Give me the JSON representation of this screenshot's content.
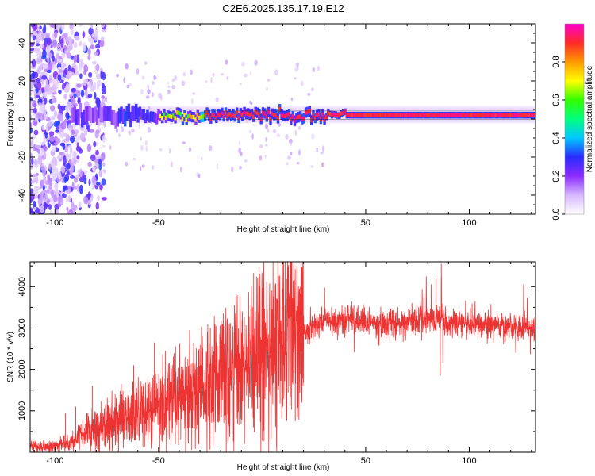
{
  "title": "C2E6.2025.135.17.19.E12",
  "colors": {
    "snr_line": "#ee3333",
    "colormap": [
      "#ffffff",
      "#d7b8ff",
      "#8b2cff",
      "#2a2bff",
      "#00c8ff",
      "#00ff80",
      "#33ff00",
      "#ffff00",
      "#ff9900",
      "#ff2a2a",
      "#ff00cc"
    ]
  },
  "chart_data": [
    {
      "type": "heatmap",
      "xlabel": "Height of straight line (km)",
      "ylabel": "Frequency (Hz)",
      "xlim": [
        -112,
        132
      ],
      "ylim": [
        -50,
        50
      ],
      "xticks": [
        -100,
        -50,
        50,
        100
      ],
      "yticks": [
        -40,
        -20,
        0,
        20,
        40
      ],
      "colorbar": {
        "label": "Normalized spectral amplitude",
        "range": [
          0.0,
          1.0
        ],
        "ticks": [
          0.0,
          0.2,
          0.4,
          0.6,
          0.8
        ]
      },
      "ridge": {
        "frequency_hz": 2,
        "x_range": [
          -92,
          132
        ],
        "peak_amplitude_x_range": [
          -28,
          132
        ]
      },
      "noise_region_x": [
        -112,
        -80
      ]
    },
    {
      "type": "line",
      "xlabel": "Height of straight line (km)",
      "ylabel": "SNR (10 * v/v)",
      "xlim": [
        -112,
        132
      ],
      "ylim": [
        0,
        4600
      ],
      "xticks": [
        -100,
        -50,
        50,
        100
      ],
      "yticks": [
        1000,
        2000,
        3000,
        4000
      ],
      "series": [
        {
          "x": [
            -112,
            -105,
            -100,
            -95,
            -90,
            -85,
            -80,
            -75,
            -70,
            -65,
            -60,
            -55,
            -50,
            -45,
            -40,
            -35,
            -30,
            -25,
            -20,
            -15,
            -10,
            -5,
            0,
            5,
            10,
            15,
            20,
            25,
            30,
            35,
            40,
            45,
            50,
            55,
            60,
            65,
            70,
            75,
            80,
            85,
            90,
            95,
            100,
            105,
            110,
            115,
            120,
            125,
            132
          ],
          "y": [
            150,
            130,
            150,
            200,
            300,
            450,
            550,
            650,
            720,
            800,
            880,
            950,
            1050,
            1150,
            1250,
            1350,
            1450,
            1550,
            1700,
            1800,
            1900,
            2100,
            2250,
            2400,
            2600,
            2800,
            2900,
            3050,
            3150,
            3200,
            3220,
            3200,
            3150,
            3120,
            3100,
            3100,
            3150,
            3200,
            3200,
            3250,
            3100,
            3150,
            3100,
            3100,
            3100,
            3050,
            3050,
            3000,
            3000
          ]
        }
      ],
      "spikes": [
        {
          "x": 86.5,
          "y": 4550
        },
        {
          "x": 84,
          "y": 4200
        },
        {
          "x": 18,
          "y": 3950
        },
        {
          "x": 12,
          "y": 3700
        },
        {
          "x": 5,
          "y": 3450
        },
        {
          "x": -25,
          "y": 3000
        },
        {
          "x": -35,
          "y": 2950
        },
        {
          "x": -52,
          "y": 2650
        },
        {
          "x": -62,
          "y": 2100
        },
        {
          "x": -82,
          "y": 1600
        },
        {
          "x": -90,
          "y": 1100
        },
        {
          "x": -95,
          "y": 950
        },
        {
          "x": 86,
          "y": 1850
        },
        {
          "x": 16,
          "y": 750
        },
        {
          "x": 10,
          "y": 1100
        }
      ]
    }
  ]
}
